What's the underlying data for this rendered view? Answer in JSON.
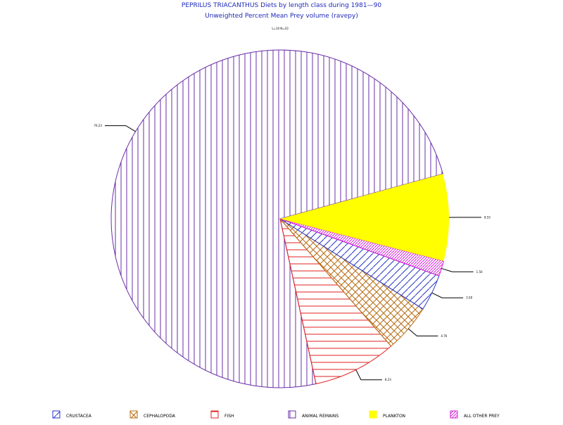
{
  "chart_data": {
    "type": "pie",
    "title": "PEPRILUS  TRIACANTHUS  Diets  by  length  class  during  1981—90",
    "subtitle": "Unweighted  Percent  Mean  Prey  volume  (ravepy)",
    "group_label": "L=10 N=10",
    "slices": [
      {
        "name": "ANIMAL REMAINS",
        "value": 76.23,
        "label": "76.23",
        "color": "#6a2fa8",
        "fill": "vertical"
      },
      {
        "name": "FISH",
        "value": 8.23,
        "label": "8.23",
        "color": "#e02020",
        "fill": "horizontal"
      },
      {
        "name": "CEPHALOPODA",
        "value": 4.76,
        "label": "4.76",
        "color": "#b86b12",
        "fill": "crosshatch"
      },
      {
        "name": "CRUSTACEA",
        "value": 3.58,
        "label": "3.58",
        "color": "#2434c8",
        "fill": "diagonal"
      },
      {
        "name": "ALL OTHER PREY",
        "value": 1.5,
        "label": "1.50",
        "color": "#d61fd6",
        "fill": "dense-diagonal"
      },
      {
        "name": "PLANKTON",
        "value": 8.55,
        "label": "8.55",
        "color": "#ffff00",
        "fill": "solid"
      }
    ],
    "legend": {
      "placement": "bottom",
      "entries": [
        "CRUSTACEA",
        "CEPHALOPODA",
        "FISH",
        "ANIMAL REMAINS",
        "PLANKTON",
        "ALL OTHER PREY"
      ]
    }
  }
}
